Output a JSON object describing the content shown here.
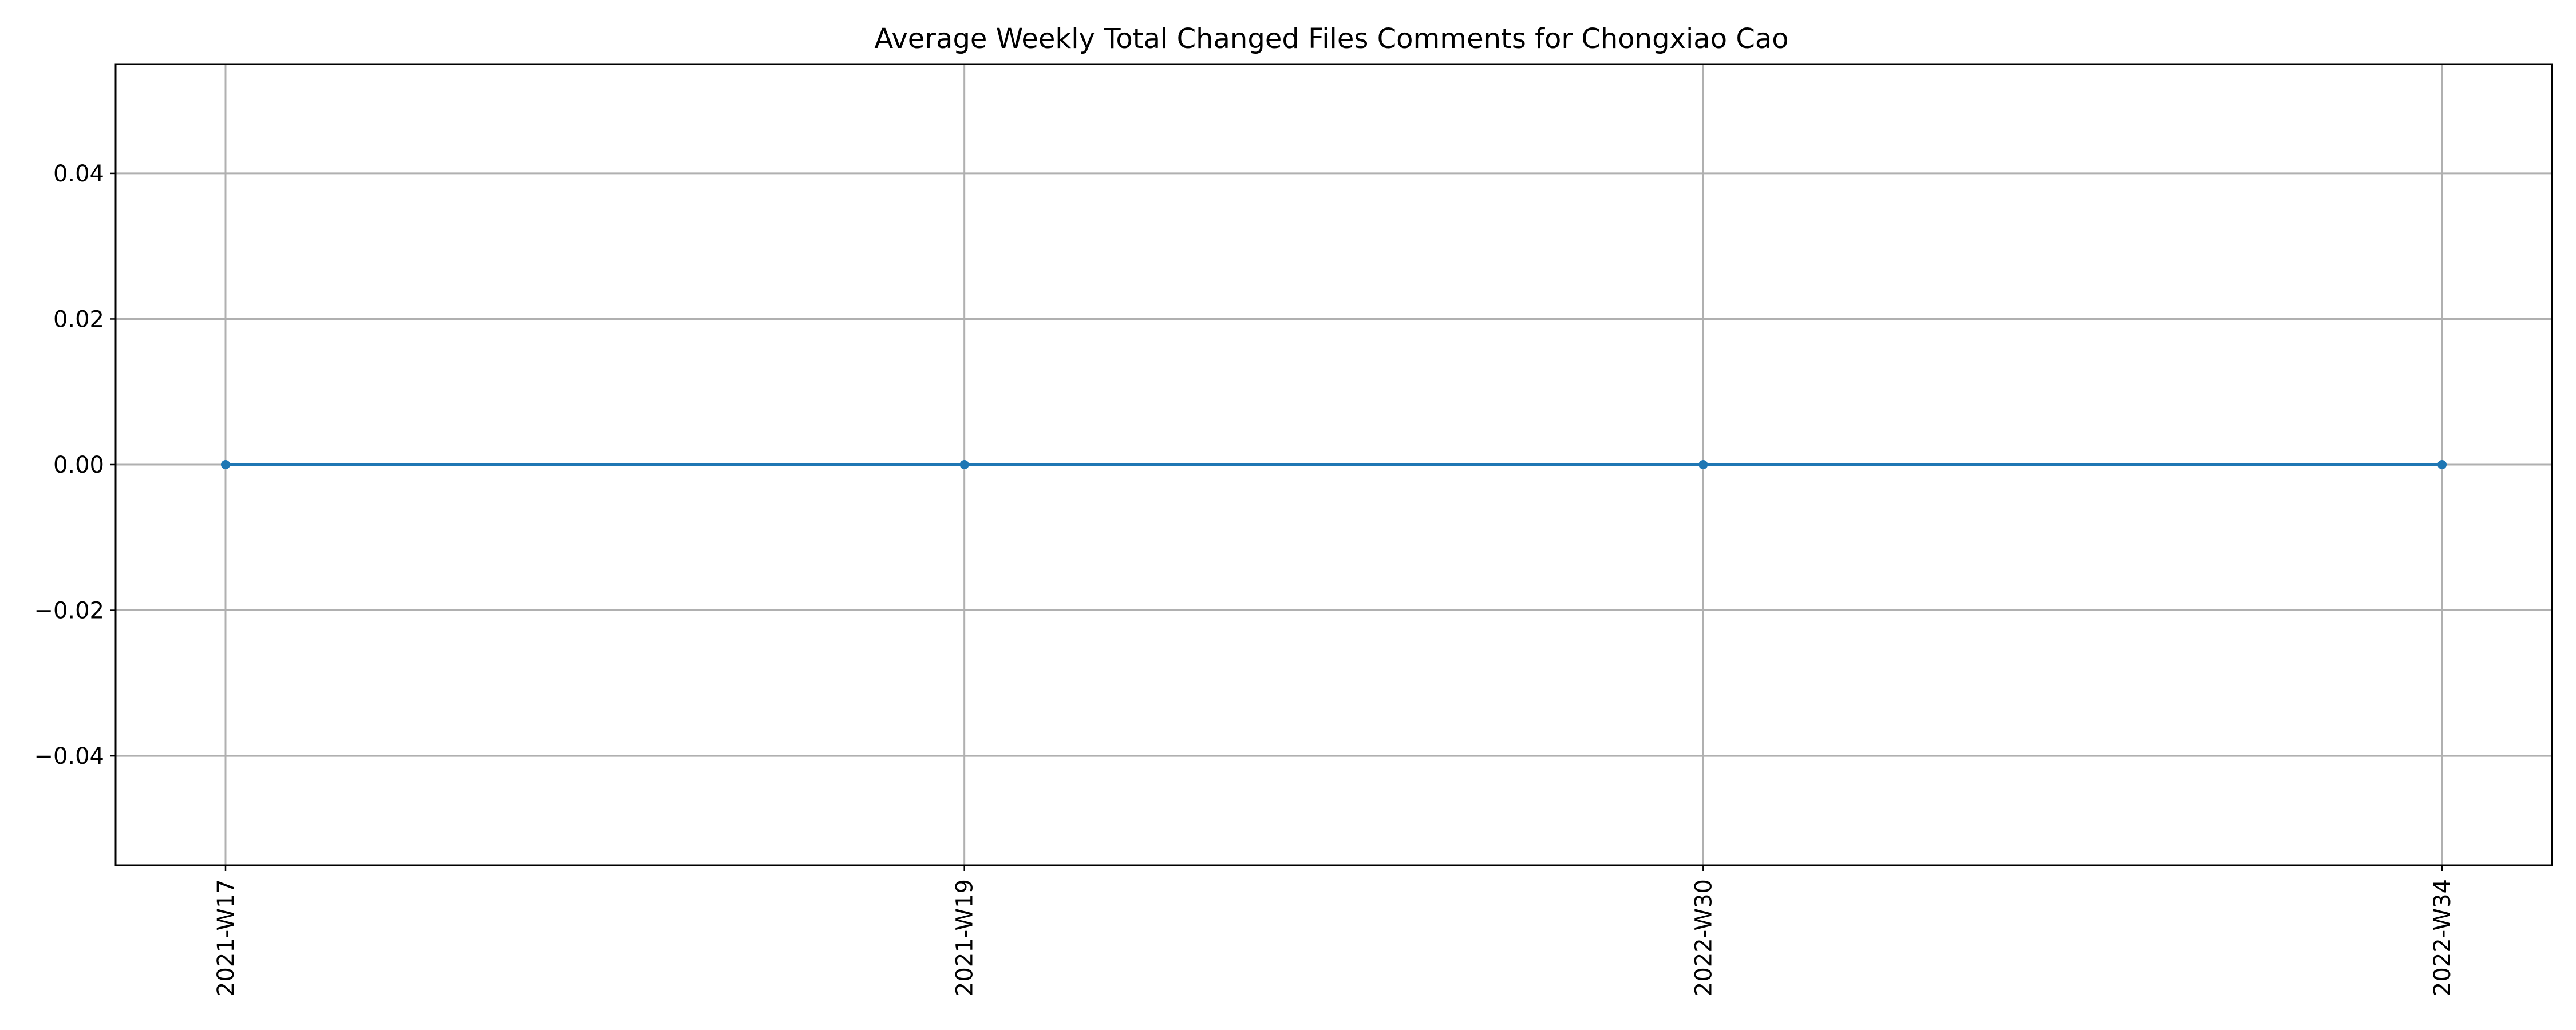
{
  "chart_data": {
    "type": "line",
    "title": "Average Weekly Total Changed Files Comments for Chongxiao Cao",
    "xlabel": "",
    "ylabel": "",
    "categories": [
      "2021-W17",
      "2021-W19",
      "2022-W30",
      "2022-W34"
    ],
    "series": [
      {
        "values": [
          0,
          0,
          0,
          0
        ],
        "color": "#1f77b4",
        "marker": "circle"
      }
    ],
    "ylim": [
      -0.055,
      0.055
    ],
    "yticks": [
      0.04,
      0.02,
      0.0,
      -0.02,
      -0.04
    ],
    "ytick_labels": [
      "0.04",
      "0.02",
      "0.00",
      "−0.02",
      "−0.04"
    ],
    "grid": true,
    "x_tick_rotation": "vertical"
  }
}
